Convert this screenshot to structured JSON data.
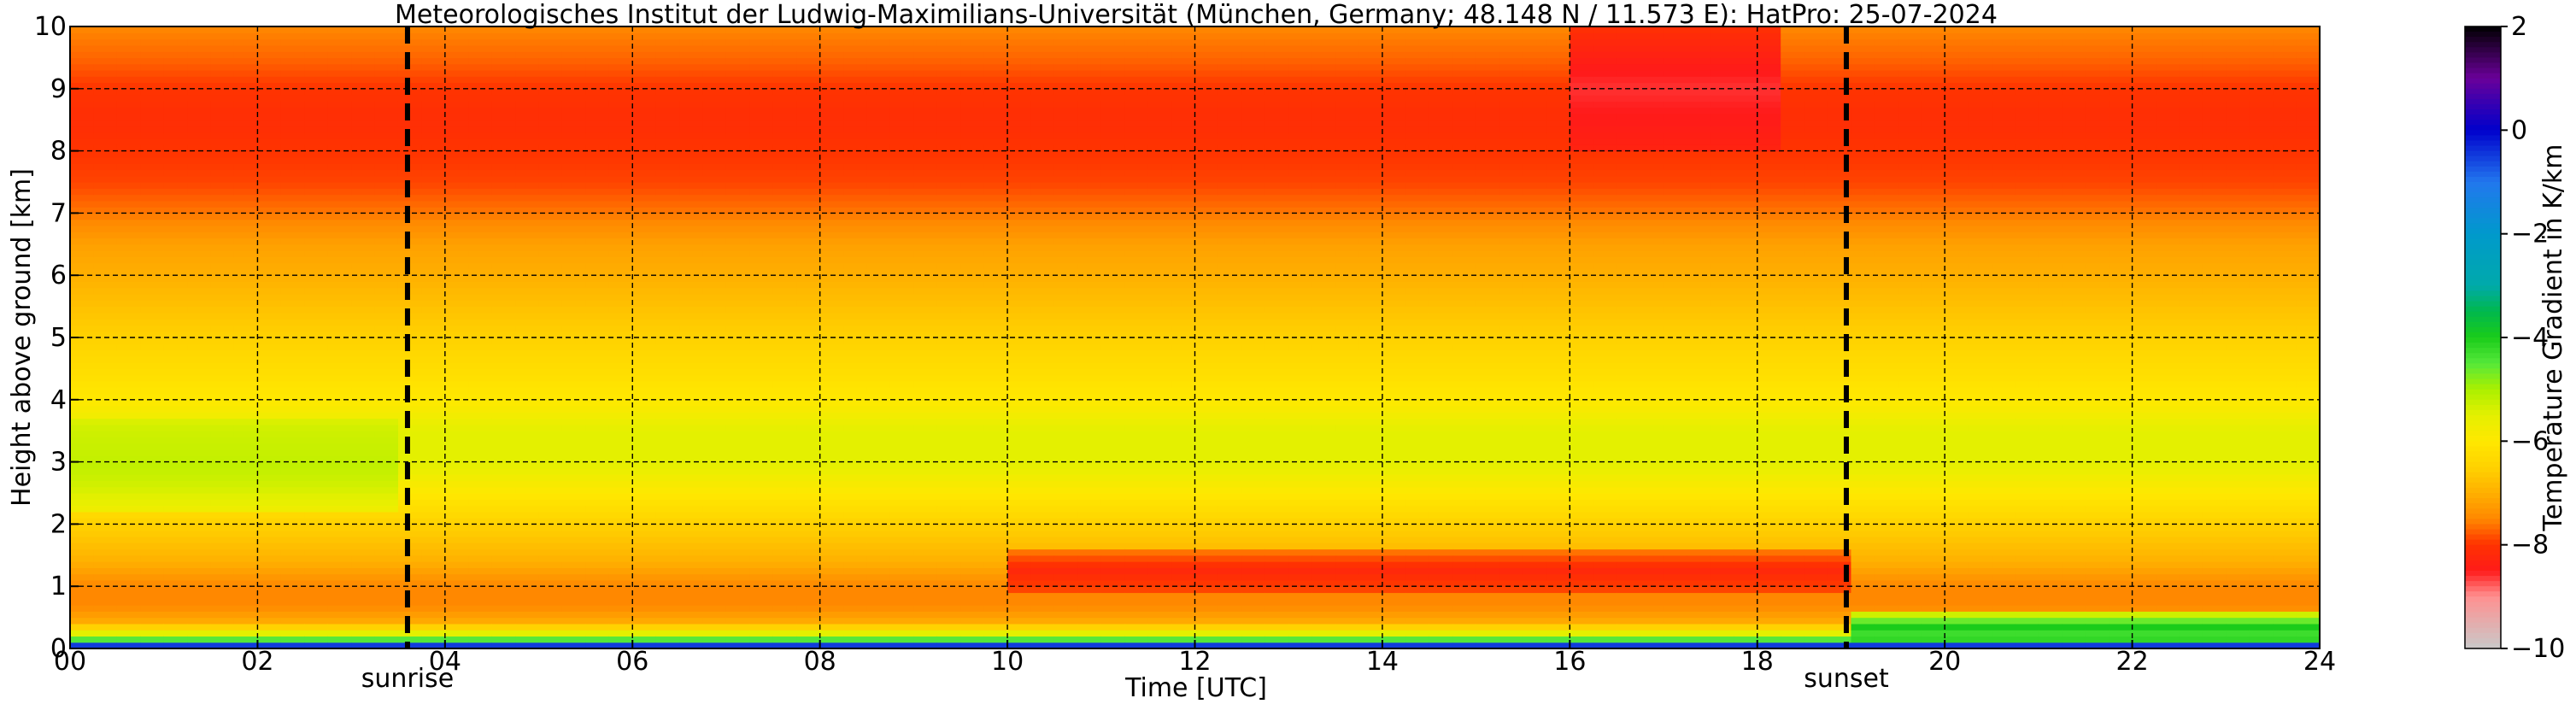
{
  "chart_data": {
    "type": "heatmap",
    "title": "Meteorologisches Institut der Ludwig-Maximilians-Universität (München, Germany; 48.148 N / 11.573 E):    HatPro: 25-07-2024",
    "xlabel": "Time [UTC]",
    "ylabel": "Height above ground [km]",
    "colorbar_label": "Temperature Gradient in K/km",
    "xlim": [
      0,
      24
    ],
    "ylim": [
      0,
      10
    ],
    "x_ticks": [
      0,
      2,
      4,
      6,
      8,
      10,
      12,
      14,
      16,
      18,
      20,
      22,
      24
    ],
    "x_tick_labels": [
      "00",
      "02",
      "04",
      "06",
      "08",
      "10",
      "12",
      "14",
      "16",
      "18",
      "20",
      "22",
      "24"
    ],
    "y_ticks": [
      0,
      1,
      2,
      3,
      4,
      5,
      6,
      7,
      8,
      9,
      10
    ],
    "y_tick_labels": [
      "0",
      "1",
      "2",
      "3",
      "4",
      "5",
      "6",
      "7",
      "8",
      "9",
      "10"
    ],
    "colorbar_range": [
      -10,
      2
    ],
    "colorbar_ticks": [
      2,
      0,
      -2,
      -4,
      -6,
      -8,
      -10
    ],
    "colorbar_tick_labels": [
      "2",
      "0",
      "−2",
      "−4",
      "−6",
      "−8",
      "−10"
    ],
    "grid": true,
    "events": [
      {
        "label": "sunrise",
        "time": 3.6
      },
      {
        "label": "sunset",
        "time": 18.95
      }
    ],
    "height_profile_km": [
      0.0,
      0.15,
      0.4,
      0.7,
      1.0,
      1.4,
      2.0,
      2.5,
      3.0,
      3.5,
      4.0,
      5.0,
      6.0,
      6.5,
      7.0,
      7.5,
      8.0,
      8.5,
      9.0,
      9.5,
      10.0
    ],
    "gradient_profile_K_per_km": [
      -3.0,
      -4.5,
      -7.0,
      -7.5,
      -7.5,
      -7.0,
      -6.5,
      -6.0,
      -5.5,
      -5.5,
      -6.0,
      -6.5,
      -7.0,
      -7.2,
      -7.6,
      -7.9,
      -8.0,
      -8.1,
      -8.0,
      -7.7,
      -7.5
    ],
    "features": [
      {
        "t0": 10,
        "t1": 19,
        "h0": 0.9,
        "h1": 1.6,
        "value": -8.2
      },
      {
        "t0": 16,
        "t1": 18.2,
        "h0": 8.0,
        "h1": 10.0,
        "value": -8.6
      },
      {
        "t0": 0,
        "t1": 3.5,
        "h0": 2.2,
        "h1": 3.7,
        "value": -5.2
      },
      {
        "t0": 0,
        "t1": 24,
        "h0": 0.0,
        "h1": 0.1,
        "value": -0.5
      },
      {
        "t0": 19,
        "t1": 24,
        "h0": 0.1,
        "h1": 0.6,
        "value": -4.0
      }
    ],
    "colorscale": [
      {
        "v": -10.0,
        "c": "#c9c9c9"
      },
      {
        "v": -9.0,
        "c": "#ff9090"
      },
      {
        "v": -8.5,
        "c": "#ff1a1a"
      },
      {
        "v": -8.0,
        "c": "#ff3300"
      },
      {
        "v": -7.5,
        "c": "#ff8800"
      },
      {
        "v": -7.0,
        "c": "#ffb000"
      },
      {
        "v": -6.5,
        "c": "#ffd200"
      },
      {
        "v": -6.0,
        "c": "#ffe800"
      },
      {
        "v": -5.5,
        "c": "#e4f000"
      },
      {
        "v": -5.0,
        "c": "#aaf000"
      },
      {
        "v": -4.5,
        "c": "#55e83a"
      },
      {
        "v": -4.0,
        "c": "#1acc1a"
      },
      {
        "v": -3.5,
        "c": "#00b84d"
      },
      {
        "v": -3.0,
        "c": "#00aaaa"
      },
      {
        "v": -2.0,
        "c": "#0099cc"
      },
      {
        "v": -1.0,
        "c": "#2277ee"
      },
      {
        "v": 0.0,
        "c": "#0000cc"
      },
      {
        "v": 1.0,
        "c": "#6a0099"
      },
      {
        "v": 2.0,
        "c": "#000000"
      }
    ]
  }
}
